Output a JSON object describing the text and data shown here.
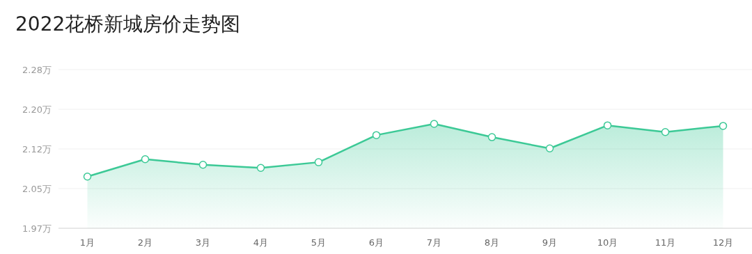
{
  "chart_data": {
    "type": "area",
    "title": "2022花桥新城房价走势图",
    "categories": [
      "1月",
      "2月",
      "3月",
      "4月",
      "5月",
      "6月",
      "7月",
      "8月",
      "9月",
      "10月",
      "11月",
      "12月"
    ],
    "series": [
      {
        "color": "#3cc996",
        "values": [
          2.071,
          2.105,
          2.094,
          2.088,
          2.099,
          2.152,
          2.174,
          2.148,
          2.126,
          2.171,
          2.158,
          2.17
        ]
      }
    ],
    "ylim": [
      1.97,
      2.28
    ],
    "yticks": [
      {
        "value": 1.97,
        "label": "1.97万"
      },
      {
        "value": 2.0475,
        "label": "2.05万"
      },
      {
        "value": 2.125,
        "label": "2.12万"
      },
      {
        "value": 2.2025,
        "label": "2.20万"
      },
      {
        "value": 2.28,
        "label": "2.28万"
      }
    ],
    "grid": "y",
    "marker": "circle",
    "line_style": "solid"
  }
}
